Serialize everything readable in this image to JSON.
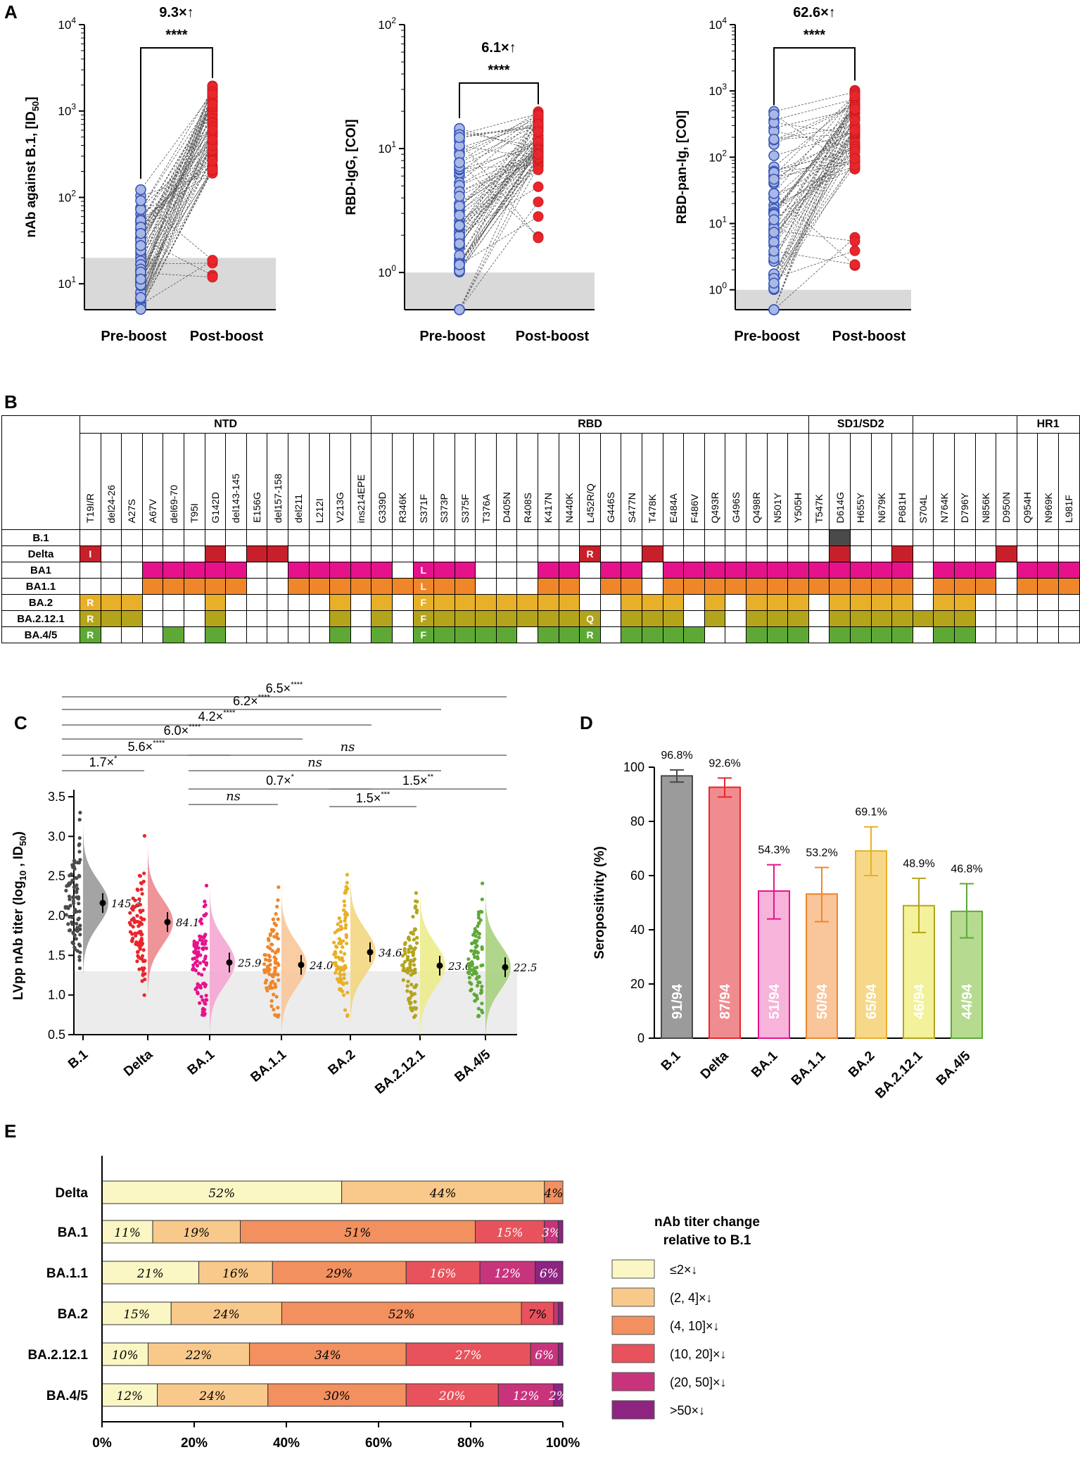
{
  "panels": {
    "A": "A",
    "B": "B",
    "C": "C",
    "D": "D",
    "E": "E"
  },
  "panelA": {
    "charts": [
      {
        "ylabel": "nAb against B.1, [ID",
        "ylabel_sub": "50",
        "ylabel_end": "]",
        "fold": "9.3×↑",
        "sig": "****",
        "ticks": [
          "10",
          "10",
          "10",
          "10"
        ],
        "exps": [
          "1",
          "2",
          "3",
          "4"
        ],
        "x": [
          "Pre-boost",
          "Post-boost"
        ]
      },
      {
        "ylabel": "RBD-IgG, [COI]",
        "fold": "6.1×↑",
        "sig": "****",
        "ticks": [
          "10",
          "10",
          "10"
        ],
        "exps": [
          "0",
          "1",
          "2"
        ],
        "x": [
          "Pre-boost",
          "Post-boost"
        ]
      },
      {
        "ylabel": "RBD-pan-Ig, [COI]",
        "fold": "62.6×↑",
        "sig": "****",
        "ticks": [
          "10",
          "10",
          "10",
          "10",
          "10"
        ],
        "exps": [
          "0",
          "1",
          "2",
          "3",
          "4"
        ],
        "x": [
          "Pre-boost",
          "Post-boost"
        ]
      }
    ]
  },
  "panelB": {
    "groups": [
      "NTD",
      "RBD",
      "SD1/SD2",
      "HR1"
    ],
    "mutations": [
      "T19I/R",
      "del24-26",
      "A27S",
      "A67V",
      "del69-70",
      "T95I",
      "G142D",
      "del143-145",
      "E156G",
      "del157-158",
      "del211",
      "L212I",
      "V213G",
      "ins214EPE",
      "G339D",
      "R346K",
      "S371F",
      "S373P",
      "S375F",
      "T376A",
      "D405N",
      "R408S",
      "K417N",
      "N440K",
      "L452R/Q",
      "G446S",
      "S477N",
      "T478K",
      "E484A",
      "F486V",
      "Q493R",
      "G496S",
      "Q498R",
      "N501Y",
      "Y505H",
      "T547K",
      "D614G",
      "H655Y",
      "N679K",
      "P681H",
      "S704L",
      "N764K",
      "D796Y",
      "N856K",
      "D950N",
      "Q954H",
      "N969K",
      "L981F"
    ],
    "variants": [
      "B.1",
      "Delta",
      "BA1",
      "BA1.1",
      "BA.2",
      "BA.2.12.1",
      "BA.4/5"
    ],
    "colors": {
      "B.1": "#4a4a4a",
      "Delta": "#c8202a",
      "BA1": "#e6128c",
      "BA1.1": "#f0862a",
      "BA.2": "#e7b028",
      "BA.2.12.1": "#b4a41c",
      "BA.4/5": "#5ea936"
    },
    "cells": {
      "B.1": [
        36
      ],
      "Delta": [
        0,
        6,
        8,
        9,
        24,
        27,
        36,
        39,
        44
      ],
      "BA1": [
        3,
        4,
        5,
        6,
        7,
        10,
        11,
        12,
        13,
        14,
        16,
        17,
        18,
        22,
        23,
        25,
        26,
        28,
        29,
        30,
        31,
        32,
        33,
        34,
        35,
        36,
        37,
        38,
        39,
        41,
        42,
        43,
        45,
        46,
        47
      ],
      "BA1.1": [
        3,
        4,
        5,
        6,
        7,
        10,
        11,
        12,
        13,
        14,
        15,
        16,
        17,
        18,
        22,
        23,
        25,
        26,
        28,
        29,
        30,
        31,
        32,
        33,
        34,
        35,
        36,
        37,
        38,
        39,
        41,
        42,
        43,
        45,
        46,
        47
      ],
      "BA.2": [
        0,
        1,
        2,
        6,
        12,
        14,
        16,
        17,
        18,
        19,
        20,
        21,
        22,
        23,
        26,
        27,
        28,
        30,
        32,
        33,
        34,
        36,
        37,
        38,
        39,
        41,
        42
      ],
      "BA.2.12.1": [
        0,
        1,
        2,
        6,
        12,
        14,
        16,
        17,
        18,
        19,
        20,
        21,
        22,
        23,
        24,
        26,
        27,
        28,
        30,
        32,
        33,
        34,
        36,
        37,
        38,
        39,
        40,
        41,
        42
      ],
      "BA.4/5": [
        0,
        4,
        6,
        12,
        14,
        16,
        17,
        18,
        19,
        20,
        22,
        23,
        24,
        26,
        27,
        28,
        29,
        32,
        33,
        34,
        36,
        37,
        38,
        39,
        41,
        42
      ]
    },
    "letters": {
      "Delta": {
        "0": "I",
        "24": "R"
      },
      "BA1": {
        "16": "L"
      },
      "BA1.1": {
        "16": "L"
      },
      "BA.2": {
        "0": "R",
        "16": "F"
      },
      "BA.2.12.1": {
        "0": "R",
        "16": "F",
        "24": "Q"
      },
      "BA.4/5": {
        "0": "R",
        "16": "F",
        "24": "R"
      }
    }
  },
  "panelC": {
    "ylabel": "LVpp nAb titer  (log",
    "ylabel_sub": "10",
    "ylabel_mid": " , ID",
    "ylabel_sub2": "50",
    "ylabel_end": ")",
    "yticks": [
      "0.5",
      "1.0",
      "1.5",
      "2.0",
      "2.5",
      "3.0",
      "3.5"
    ],
    "categories": [
      "B.1",
      "Delta",
      "BA.1",
      "BA.1.1",
      "BA.2",
      "BA.2.12.1",
      "BA.4/5"
    ],
    "gmt": [
      "145.3",
      "84.1",
      "25.9",
      "24.0",
      "34.6",
      "23.6",
      "22.5"
    ],
    "brackets": [
      "6.5×",
      "6.2×",
      "4.2×",
      "6.0×",
      "5.6×",
      "1.7×",
      "ns",
      "ns",
      "0.7×",
      "1.5×",
      "ns",
      "1.5×"
    ],
    "stars": [
      "****",
      "****",
      "****",
      "****",
      "****",
      "*",
      "",
      "",
      "*",
      "**",
      "",
      "***"
    ]
  },
  "chart_data": [
    {
      "type": "bar",
      "title": "",
      "ylabel": "Seropositivity (%)",
      "ylim": [
        0,
        100
      ],
      "categories": [
        "B.1",
        "Delta",
        "BA.1",
        "BA.1.1",
        "BA.2",
        "BA.2.12.1",
        "BA.4/5"
      ],
      "values": [
        96.8,
        92.6,
        54.3,
        53.2,
        69.1,
        48.9,
        46.8
      ],
      "value_labels": [
        "96.8%",
        "92.6%",
        "54.3%",
        "53.2%",
        "69.1%",
        "48.9%",
        "46.8%"
      ],
      "counts": [
        "91/94",
        "87/94",
        "51/94",
        "50/94",
        "65/94",
        "46/94",
        "44/94"
      ],
      "error_low": [
        94.5,
        89.0,
        44.0,
        43.0,
        60.0,
        39.0,
        37.0
      ],
      "error_high": [
        99.0,
        96.0,
        64.0,
        63.0,
        78.0,
        59.0,
        57.0
      ],
      "yticks": [
        "0",
        "20",
        "40",
        "60",
        "80",
        "100"
      ]
    },
    {
      "type": "bar",
      "subtype": "stacked-horizontal",
      "xlabel": "",
      "categories": [
        "Delta",
        "BA.1",
        "BA.1.1",
        "BA.2",
        "BA.2.12.1",
        "BA.4/5"
      ],
      "series": [
        {
          "name": "≤2×↓",
          "values": [
            52,
            11,
            21,
            15,
            10,
            12
          ]
        },
        {
          "name": "(2, 4]×↓",
          "values": [
            44,
            19,
            16,
            24,
            22,
            24
          ]
        },
        {
          "name": "(4, 10]×↓",
          "values": [
            4,
            51,
            29,
            52,
            34,
            30
          ]
        },
        {
          "name": "(10, 20]×↓",
          "values": [
            0,
            15,
            16,
            7,
            27,
            20
          ]
        },
        {
          "name": "(20, 50]×↓",
          "values": [
            0,
            3,
            12,
            1,
            6,
            12
          ]
        },
        {
          "name": ">50×↓",
          "values": [
            0,
            1,
            6,
            1,
            1,
            2
          ]
        }
      ],
      "labels": [
        [
          "52%",
          "44%",
          "4%",
          "",
          "",
          ""
        ],
        [
          "11%",
          "19%",
          "51%",
          "15%",
          "3%",
          ""
        ],
        [
          "21%",
          "16%",
          "29%",
          "16%",
          "12%",
          "6%"
        ],
        [
          "15%",
          "24%",
          "52%",
          "7%",
          "",
          ""
        ],
        [
          "10%",
          "22%",
          "34%",
          "27%",
          "6%",
          ""
        ],
        [
          "12%",
          "24%",
          "30%",
          "20%",
          "12%",
          "2%"
        ]
      ],
      "xticks": [
        "0%",
        "20%",
        "40%",
        "60%",
        "80%",
        "100%"
      ],
      "legend_title1": "nAb titer change",
      "legend_title2": "relative to B.1"
    }
  ],
  "colors": {
    "blue": "#3a57b7",
    "red": "#e8262c",
    "pink": "#e6128c",
    "orange": "#f0862a",
    "gold": "#e7b028",
    "olive": "#b4a41c",
    "green": "#5ea936",
    "grey": "#777777"
  }
}
